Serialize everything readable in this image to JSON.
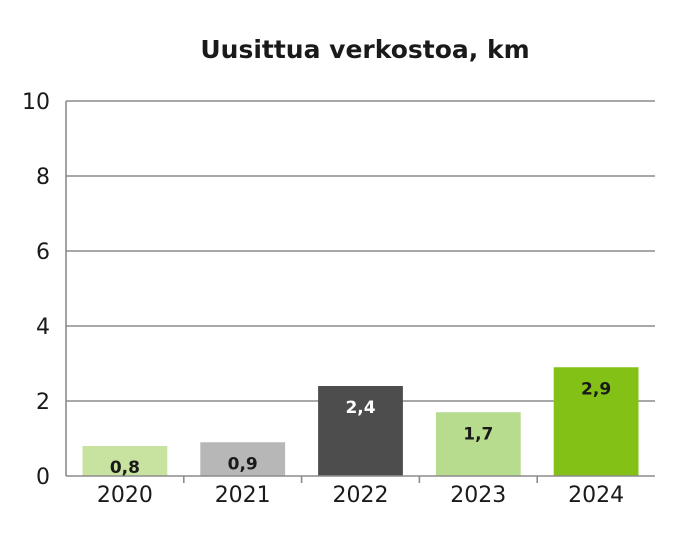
{
  "chart_data": {
    "type": "bar",
    "title": "Uusittua verkostoa, km",
    "categories": [
      "2020",
      "2021",
      "2022",
      "2023",
      "2024"
    ],
    "values": [
      0.8,
      0.9,
      2.4,
      1.7,
      2.9
    ],
    "value_labels": [
      "0,8",
      "0,9",
      "2,4",
      "1,7",
      "2,9"
    ],
    "bar_colors": [
      "#c8e2a0",
      "#b7b7b7",
      "#4d4d4d",
      "#b7dc8d",
      "#84c117"
    ],
    "label_colors": [
      "#1a1a1a",
      "#1a1a1a",
      "#ffffff",
      "#1a1a1a",
      "#1a1a1a"
    ],
    "ylim": [
      0,
      10
    ],
    "yticks": [
      "0",
      "2",
      "4",
      "6",
      "8",
      "10"
    ],
    "grid": true,
    "xlabel": "",
    "ylabel": ""
  }
}
